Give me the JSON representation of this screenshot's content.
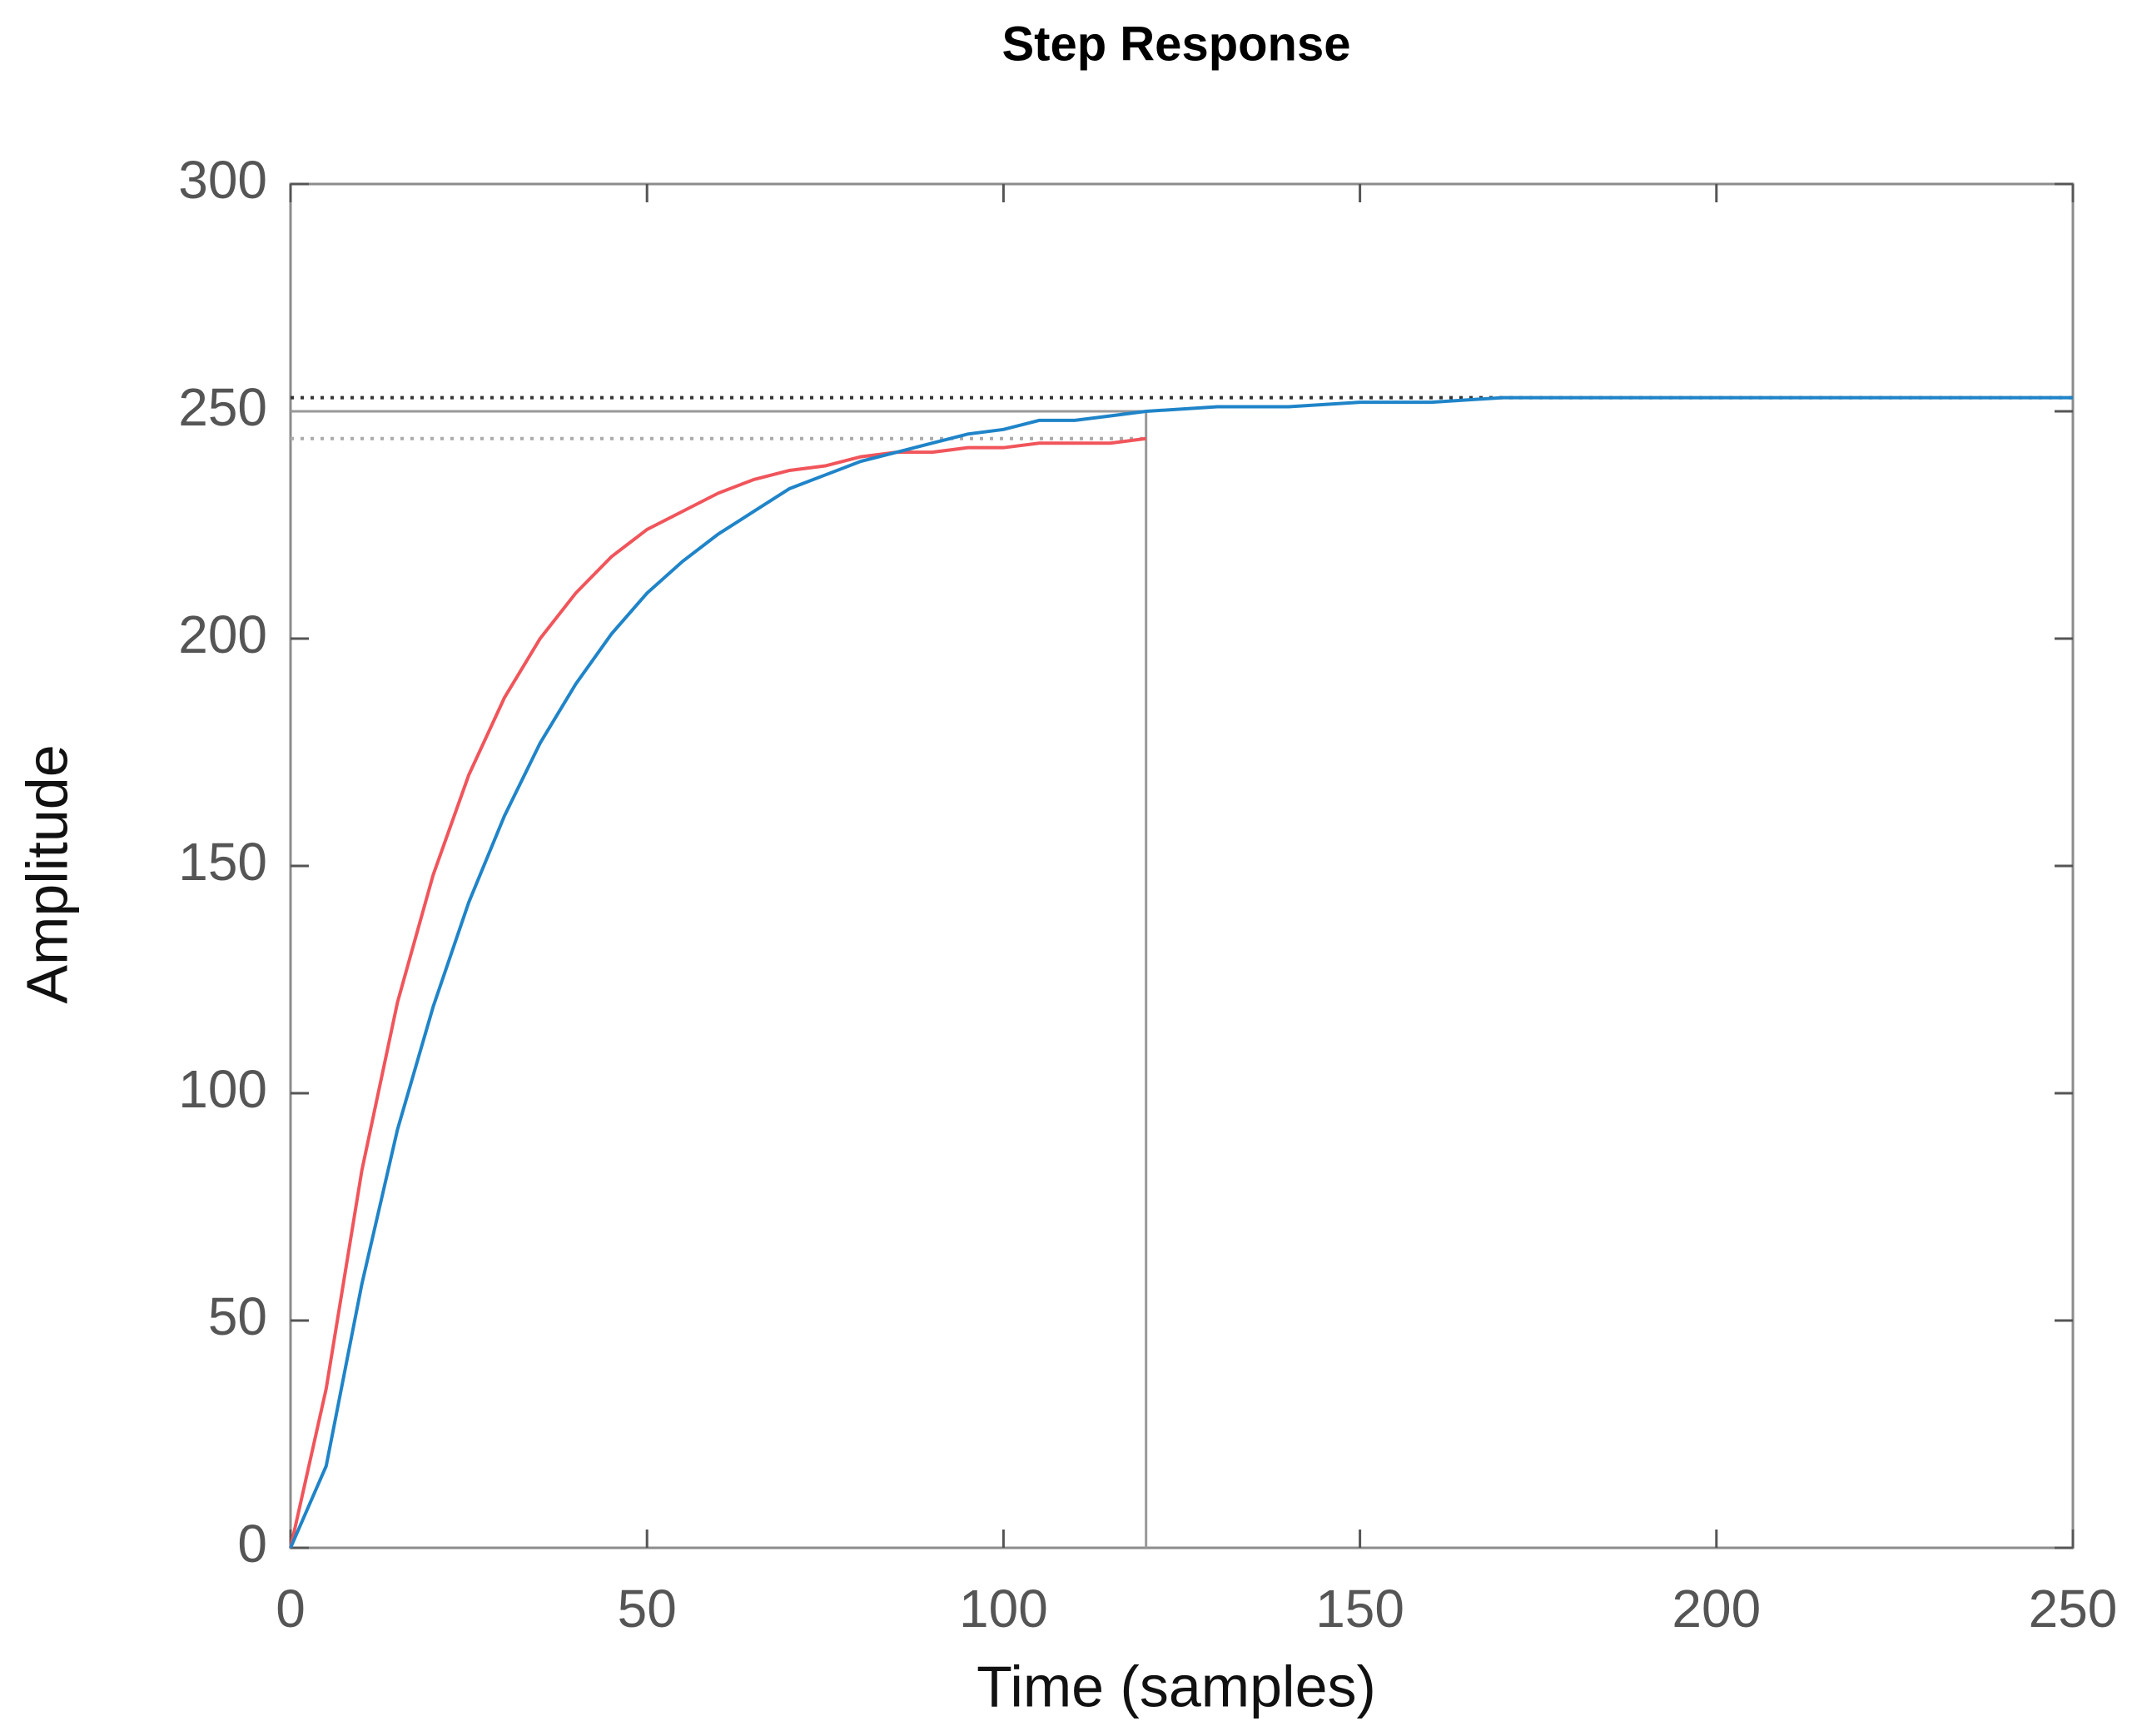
{
  "chart_data": {
    "type": "line",
    "title": "Step Response",
    "x_label": "Time (samples)",
    "y_label": "Amplitude",
    "xlim": [
      0,
      250
    ],
    "ylim": [
      0,
      300
    ],
    "xticks": [
      0,
      50,
      100,
      150,
      200,
      250
    ],
    "yticks": [
      0,
      50,
      100,
      150,
      200,
      250,
      300
    ],
    "series": [
      {
        "color": "#f0555b",
        "x": [
          0,
          5,
          10,
          15,
          20,
          25,
          30,
          35,
          40,
          45,
          50,
          55,
          60,
          65,
          70,
          75,
          80,
          85,
          90,
          95,
          100,
          105,
          110,
          115,
          120
        ],
        "values": [
          0,
          35,
          83,
          120,
          148,
          170,
          187,
          200,
          210,
          218,
          224,
          228,
          232,
          235,
          237,
          238,
          240,
          241,
          241,
          242,
          242,
          243,
          243,
          243,
          244
        ]
      },
      {
        "color": "#1f84c8",
        "x": [
          0,
          5,
          10,
          15,
          20,
          25,
          30,
          35,
          40,
          45,
          50,
          55,
          60,
          65,
          70,
          75,
          80,
          85,
          90,
          95,
          100,
          105,
          110,
          115,
          120,
          130,
          140,
          150,
          160,
          170,
          180,
          190,
          200,
          210,
          220,
          230,
          240,
          250
        ],
        "values": [
          0,
          18,
          58,
          92,
          119,
          142,
          161,
          177,
          190,
          201,
          210,
          217,
          223,
          228,
          233,
          236,
          239,
          241,
          243,
          245,
          246,
          248,
          248,
          249,
          250,
          251,
          251,
          252,
          252,
          253,
          253,
          253,
          253,
          253,
          253,
          253,
          253,
          253
        ]
      }
    ],
    "hlines": [
      {
        "value": 253,
        "x": [
          0,
          250
        ],
        "color": "#333333"
      },
      {
        "value": 244,
        "x": [
          0,
          120
        ],
        "color": "#aaaaaa"
      }
    ],
    "box": {
      "x": [
        0,
        120
      ],
      "y": [
        0,
        250
      ],
      "color": "#999999"
    }
  }
}
